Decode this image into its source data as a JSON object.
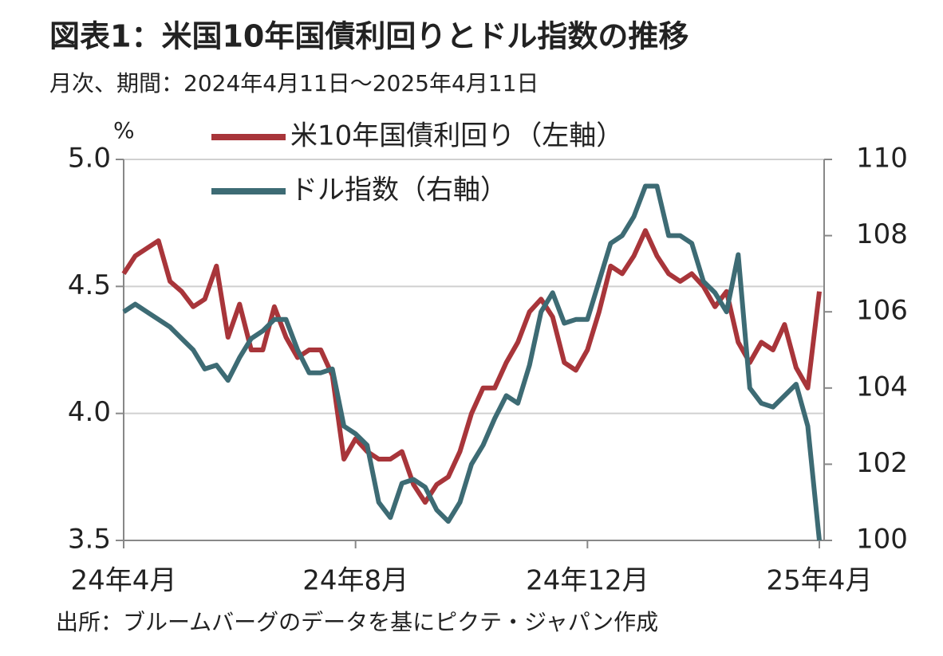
{
  "chart_data": {
    "type": "line",
    "title": "図表1：米国10年国債利回りとドル指数の推移",
    "subtitle": "月次、期間：2024年4月11日～2025年4月11日",
    "ylabel": "%",
    "source": "出所：ブルームバーグのデータを基にピクテ・ジャパン作成",
    "categories": [
      "24年4月",
      null,
      null,
      null,
      null,
      null,
      null,
      null,
      null,
      null,
      null,
      null,
      null,
      null,
      null,
      null,
      null,
      null,
      null,
      null,
      "24年8月",
      null,
      null,
      null,
      null,
      null,
      null,
      null,
      null,
      null,
      null,
      null,
      null,
      null,
      null,
      null,
      null,
      null,
      null,
      null,
      "24年12月",
      null,
      null,
      null,
      null,
      null,
      null,
      null,
      null,
      null,
      null,
      null,
      null,
      null,
      null,
      null,
      null,
      null,
      null,
      null,
      "25年4月"
    ],
    "series": [
      {
        "name": "米10年国債利回り（左軸）",
        "color": "#a8353a",
        "values": [
          4.55,
          4.62,
          4.65,
          4.68,
          4.52,
          4.48,
          4.42,
          4.45,
          4.58,
          4.3,
          4.43,
          4.25,
          4.25,
          4.42,
          4.3,
          4.22,
          4.25,
          4.25,
          4.15,
          3.82,
          3.9,
          3.85,
          3.82,
          3.82,
          3.85,
          3.72,
          3.65,
          3.72,
          3.75,
          3.85,
          4.0,
          4.1,
          4.1,
          4.2,
          4.28,
          4.4,
          4.45,
          4.38,
          4.2,
          4.17,
          4.25,
          4.4,
          4.58,
          4.55,
          4.62,
          4.72,
          4.62,
          4.55,
          4.52,
          4.55,
          4.5,
          4.42,
          4.48,
          4.28,
          4.2,
          4.28,
          4.25,
          4.35,
          4.18,
          4.1,
          4.48
        ]
      },
      {
        "name": "ドル指数（右軸）",
        "color": "#3d6b74",
        "axis": "y2",
        "values": [
          106.0,
          106.2,
          106.0,
          105.8,
          105.6,
          105.3,
          105.0,
          104.5,
          104.6,
          104.2,
          104.8,
          105.3,
          105.5,
          105.8,
          105.8,
          105.0,
          104.4,
          104.4,
          104.5,
          103.0,
          102.8,
          102.5,
          101.0,
          100.6,
          101.5,
          101.6,
          101.4,
          100.8,
          100.5,
          101.0,
          102.0,
          102.5,
          103.2,
          103.8,
          103.6,
          104.6,
          106.0,
          106.5,
          105.7,
          105.8,
          105.8,
          106.8,
          107.8,
          108.0,
          108.5,
          109.3,
          109.3,
          108.0,
          108.0,
          107.8,
          106.8,
          106.5,
          106.0,
          107.5,
          104.0,
          103.6,
          103.5,
          103.8,
          104.1,
          103.0,
          100.0
        ]
      }
    ],
    "ylim": [
      3.5,
      5.0
    ],
    "yticks": [
      {
        "value": 3.5,
        "label": "3.5"
      },
      {
        "value": 4.0,
        "label": "4.0"
      },
      {
        "value": 4.5,
        "label": "4.5"
      },
      {
        "value": 5.0,
        "label": "5.0"
      }
    ],
    "y2lim": [
      100,
      110
    ],
    "y2ticks": [
      100,
      102,
      104,
      106,
      108,
      110
    ],
    "grid": true
  }
}
